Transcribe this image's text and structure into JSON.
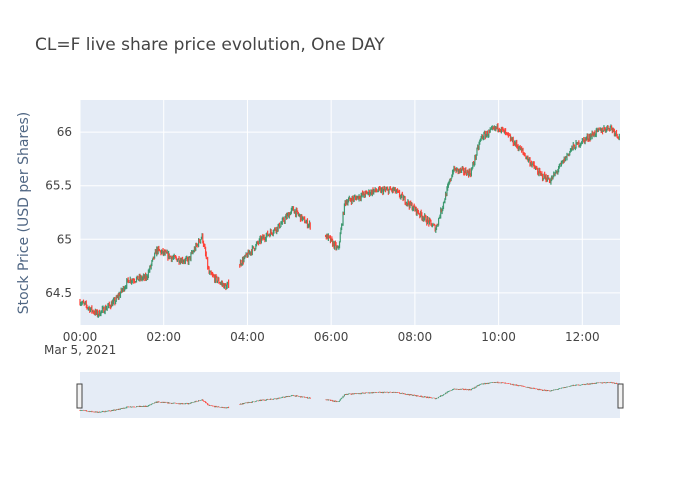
{
  "chart_data": {
    "type": "candlestick",
    "title": "CL=F live share price evolution, One DAY",
    "ylabel": "Stock Price (USD per Shares)",
    "xlabel": "",
    "x_ticks": [
      "00:00",
      "02:00",
      "04:00",
      "06:00",
      "08:00",
      "10:00",
      "12:00"
    ],
    "x_date_label": "Mar 5, 2021",
    "y_ticks": [
      64.5,
      65,
      65.5,
      66
    ],
    "ylim": [
      64.2,
      66.3
    ],
    "xlim_hours": [
      0,
      12.9
    ],
    "gaps": [
      [
        3.55,
        3.8
      ],
      [
        5.5,
        5.85
      ]
    ],
    "price_path": [
      {
        "t": "00:00",
        "price": 64.42
      },
      {
        "t": "00:25",
        "price": 64.3
      },
      {
        "t": "00:50",
        "price": 64.42
      },
      {
        "t": "01:10",
        "price": 64.62
      },
      {
        "t": "01:35",
        "price": 64.64
      },
      {
        "t": "01:50",
        "price": 64.9
      },
      {
        "t": "02:15",
        "price": 64.82
      },
      {
        "t": "02:35",
        "price": 64.8
      },
      {
        "t": "02:55",
        "price": 65.03
      },
      {
        "t": "03:05",
        "price": 64.68
      },
      {
        "t": "03:30",
        "price": 64.55
      },
      {
        "t": "03:50",
        "price": 64.78
      },
      {
        "t": "04:20",
        "price": 65.0
      },
      {
        "t": "04:45",
        "price": 65.12
      },
      {
        "t": "05:05",
        "price": 65.28
      },
      {
        "t": "05:25",
        "price": 65.15
      },
      {
        "t": "05:55",
        "price": 65.02
      },
      {
        "t": "06:10",
        "price": 64.9
      },
      {
        "t": "06:20",
        "price": 65.35
      },
      {
        "t": "07:00",
        "price": 65.45
      },
      {
        "t": "07:30",
        "price": 65.46
      },
      {
        "t": "08:10",
        "price": 65.22
      },
      {
        "t": "08:30",
        "price": 65.1
      },
      {
        "t": "08:55",
        "price": 65.65
      },
      {
        "t": "09:20",
        "price": 65.62
      },
      {
        "t": "09:35",
        "price": 65.95
      },
      {
        "t": "10:00",
        "price": 66.05
      },
      {
        "t": "10:30",
        "price": 65.85
      },
      {
        "t": "11:00",
        "price": 65.6
      },
      {
        "t": "11:15",
        "price": 65.55
      },
      {
        "t": "11:45",
        "price": 65.85
      },
      {
        "t": "12:20",
        "price": 66.0
      },
      {
        "t": "12:40",
        "price": 66.05
      },
      {
        "t": "12:54",
        "price": 65.95
      }
    ],
    "colors": {
      "increasing": "#3d9970",
      "decreasing": "#ff4136",
      "plot_bg": "#e5ecf6",
      "grid": "#ffffff"
    },
    "rangeslider": true
  }
}
